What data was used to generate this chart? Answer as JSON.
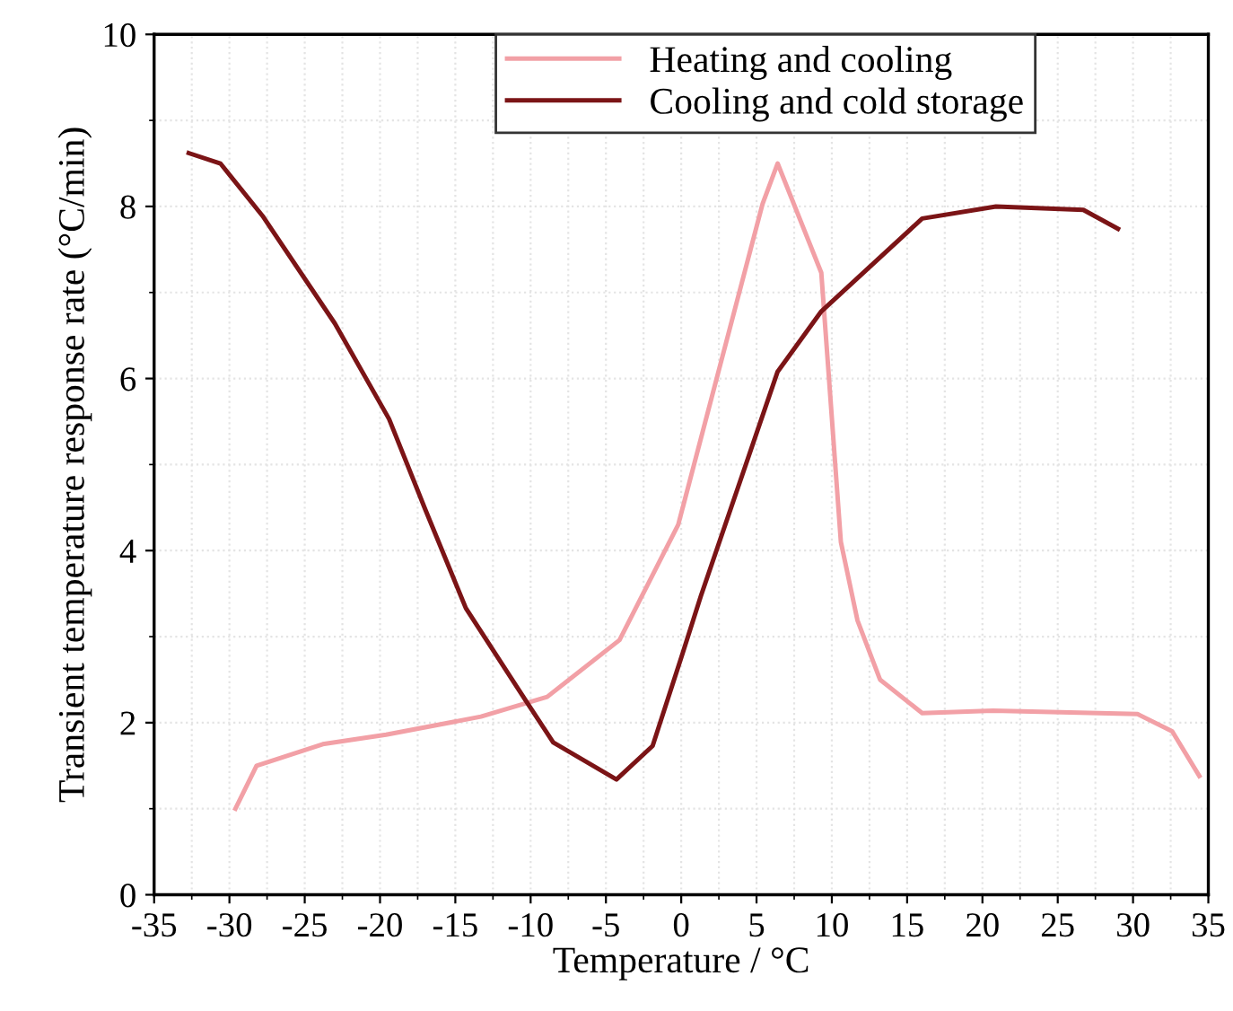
{
  "chart_data": {
    "type": "line",
    "xlabel": "Temperature / °C",
    "ylabel": "Transient temperature response rate (°C/min)",
    "xlim": [
      -35,
      35
    ],
    "xticks": [
      -35,
      -30,
      -25,
      -20,
      -15,
      -10,
      -5,
      0,
      5,
      10,
      15,
      20,
      25,
      30,
      35
    ],
    "ylim": [
      0,
      10
    ],
    "yticks": [
      0,
      2,
      4,
      6,
      8,
      10
    ],
    "grid": true,
    "legend": "top",
    "marker": "none",
    "line_style": "solid",
    "series": [
      {
        "name": "Heating and cooling",
        "color": "#f2a0a6",
        "x": [
          -29.6,
          -28.2,
          -23.8,
          -19.6,
          -13.3,
          -8.9,
          -4.1,
          -0.2,
          5.4,
          6.4,
          9.3,
          10.6,
          11.7,
          13.2,
          16.0,
          20.7,
          30.3,
          32.6,
          34.4
        ],
        "values": [
          1.0,
          1.5,
          1.75,
          1.86,
          2.07,
          2.3,
          2.96,
          4.3,
          8.03,
          8.5,
          7.23,
          4.1,
          3.19,
          2.5,
          2.11,
          2.14,
          2.1,
          1.9,
          1.38
        ]
      },
      {
        "name": "Cooling and cold storage",
        "color": "#7b1416",
        "x": [
          -32.7,
          -30.6,
          -27.8,
          -23.0,
          -19.4,
          -17.0,
          -14.3,
          -10.3,
          -8.5,
          -4.3,
          -1.9,
          0.1,
          1.3,
          6.4,
          9.3,
          16.0,
          20.9,
          26.7,
          29.0
        ],
        "values": [
          8.62,
          8.5,
          7.89,
          6.64,
          5.53,
          4.48,
          3.33,
          2.25,
          1.77,
          1.34,
          1.73,
          2.81,
          3.47,
          6.08,
          6.78,
          7.86,
          8.0,
          7.96,
          7.74
        ]
      }
    ]
  }
}
